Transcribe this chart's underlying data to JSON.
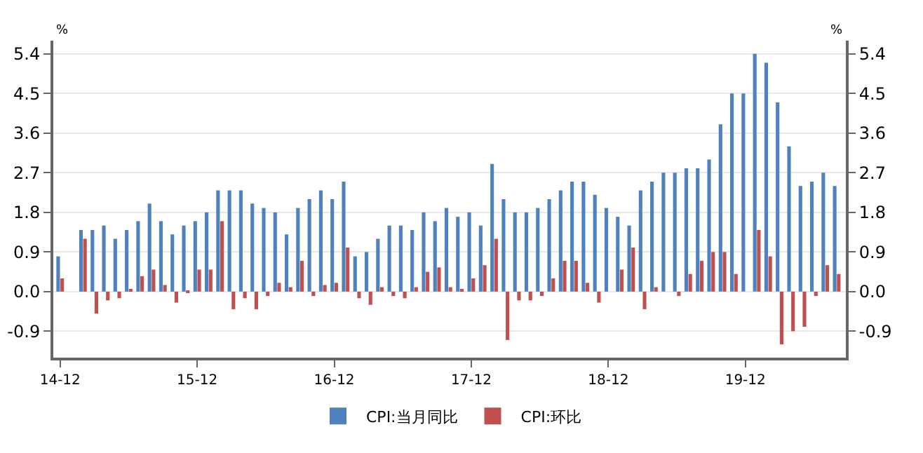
{
  "chart_data": {
    "type": "bar",
    "ylabel": "%",
    "y2label": "%",
    "categories": [
      "14-12",
      null,
      null,
      null,
      null,
      null,
      null,
      null,
      null,
      null,
      null,
      null,
      "15-12",
      null,
      null,
      null,
      null,
      null,
      null,
      null,
      null,
      null,
      null,
      null,
      "16-12",
      null,
      null,
      null,
      null,
      null,
      null,
      null,
      null,
      null,
      null,
      null,
      "17-12",
      null,
      null,
      null,
      null,
      null,
      null,
      null,
      null,
      null,
      null,
      null,
      "18-12",
      null,
      null,
      null,
      null,
      null,
      null,
      null,
      null,
      null,
      null,
      null,
      "19-12",
      null,
      null,
      null,
      null,
      null,
      null,
      null,
      null
    ],
    "series": [
      {
        "name": "CPI:当月同比",
        "color": "#4f81bd",
        "values": [
          0.8,
          null,
          1.4,
          1.4,
          1.5,
          1.2,
          1.4,
          1.6,
          2.0,
          1.6,
          1.3,
          1.5,
          1.6,
          1.8,
          2.3,
          2.3,
          2.3,
          2.0,
          1.9,
          1.8,
          1.3,
          1.9,
          2.1,
          2.3,
          2.1,
          2.5,
          0.8,
          0.9,
          1.2,
          1.5,
          1.5,
          1.4,
          1.8,
          1.6,
          1.9,
          1.7,
          1.8,
          1.5,
          2.9,
          2.1,
          1.8,
          1.8,
          1.9,
          2.1,
          2.3,
          2.5,
          2.5,
          2.2,
          1.9,
          1.7,
          1.5,
          2.3,
          2.5,
          2.7,
          2.7,
          2.8,
          2.8,
          3.0,
          3.8,
          4.5,
          4.5,
          5.4,
          5.2,
          4.3,
          3.3,
          2.4,
          2.5,
          2.7,
          2.4
        ]
      },
      {
        "name": "CPI:环比",
        "color": "#c0504d",
        "values": [
          0.3,
          null,
          1.2,
          -0.5,
          -0.2,
          -0.15,
          0.05,
          0.35,
          0.5,
          0.15,
          -0.25,
          -0.03,
          0.5,
          0.5,
          1.6,
          -0.4,
          -0.15,
          -0.4,
          -0.1,
          0.2,
          0.1,
          0.7,
          -0.1,
          0.15,
          0.2,
          1.0,
          -0.15,
          -0.3,
          0.1,
          -0.1,
          -0.15,
          0.1,
          0.45,
          0.55,
          0.1,
          0.03,
          0.3,
          0.6,
          1.2,
          -1.1,
          -0.2,
          -0.2,
          -0.1,
          0.3,
          0.7,
          0.7,
          0.2,
          -0.25,
          0.0,
          0.5,
          1.0,
          -0.4,
          0.1,
          0.0,
          -0.1,
          0.4,
          0.7,
          0.9,
          0.9,
          0.4,
          0.0,
          1.4,
          0.8,
          -1.2,
          -0.9,
          -0.8,
          -0.1,
          0.6,
          0.4
        ]
      }
    ],
    "ylim": [
      -1.5,
      5.7
    ],
    "yticks": [
      {
        "value": -0.9,
        "label": "-0.9"
      },
      {
        "value": 0,
        "label": "0.0"
      },
      {
        "value": 0.9,
        "label": "0.9"
      },
      {
        "value": 1.8,
        "label": "1.8"
      },
      {
        "value": 2.7,
        "label": "2.7"
      },
      {
        "value": 3.6,
        "label": "3.6"
      },
      {
        "value": 4.5,
        "label": "4.5"
      },
      {
        "value": 5.4,
        "label": "5.4"
      }
    ],
    "y2lim": [
      -1.5,
      5.7
    ],
    "y2ticks": [
      {
        "value": -0.9,
        "label": "-0.9"
      },
      {
        "value": 0,
        "label": "0.0"
      },
      {
        "value": 0.9,
        "label": "0.9"
      },
      {
        "value": 1.8,
        "label": "1.8"
      },
      {
        "value": 2.7,
        "label": "2.7"
      },
      {
        "value": 3.6,
        "label": "3.6"
      },
      {
        "value": 4.5,
        "label": "4.5"
      },
      {
        "value": 5.4,
        "label": "5.4"
      }
    ],
    "grid": "y",
    "legend": "bottom"
  }
}
